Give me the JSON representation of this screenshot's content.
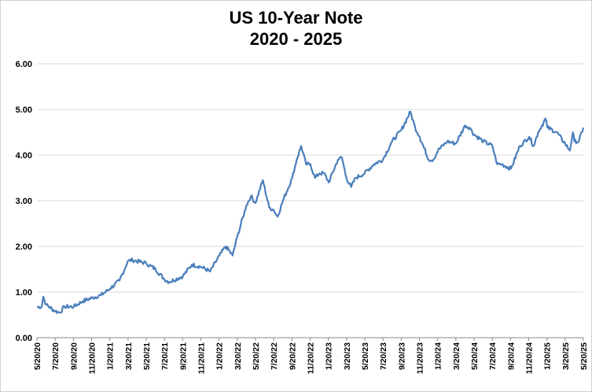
{
  "chart_data": {
    "type": "line",
    "title": "US 10-Year Note",
    "subtitle": "2020 - 2025",
    "xlabel": "",
    "ylabel": "",
    "ylim": [
      0,
      6
    ],
    "y_ticks": [
      "6.00",
      "5.00",
      "4.00",
      "3.00",
      "2.00",
      "1.00",
      "0.00"
    ],
    "x_ticks": [
      "5/20/20",
      "7/20/20",
      "9/20/20",
      "11/20/20",
      "1/20/21",
      "3/20/21",
      "5/20/21",
      "7/20/21",
      "9/20/21",
      "11/20/21",
      "1/20/22",
      "3/20/22",
      "5/20/22",
      "7/20/22",
      "9/20/22",
      "11/20/22",
      "1/20/23",
      "3/20/23",
      "5/20/23",
      "7/20/23",
      "9/20/23",
      "11/20/23",
      "1/20/24",
      "3/20/24",
      "5/20/24",
      "7/20/24",
      "9/20/24",
      "11/20/24",
      "1/20/25",
      "3/20/25",
      "5/20/25"
    ],
    "grid": true,
    "legend": "none",
    "series": [
      {
        "color": "#4a7ebb",
        "x": [
          "2020-05-20",
          "2020-06-05",
          "2020-06-10",
          "2020-06-20",
          "2020-07-20",
          "2020-08-05",
          "2020-08-20",
          "2020-09-20",
          "2020-10-20",
          "2020-11-20",
          "2020-12-20",
          "2021-01-20",
          "2021-02-20",
          "2021-03-20",
          "2021-04-05",
          "2021-05-20",
          "2021-06-20",
          "2021-07-20",
          "2021-08-05",
          "2021-09-20",
          "2021-10-20",
          "2021-11-20",
          "2021-12-20",
          "2022-01-20",
          "2022-02-10",
          "2022-03-05",
          "2022-03-20",
          "2022-04-20",
          "2022-05-05",
          "2022-05-20",
          "2022-06-14",
          "2022-07-05",
          "2022-07-20",
          "2022-08-02",
          "2022-08-20",
          "2022-09-20",
          "2022-10-05",
          "2022-10-20",
          "2022-11-05",
          "2022-11-20",
          "2022-12-05",
          "2022-12-20",
          "2023-01-05",
          "2023-01-20",
          "2023-02-20",
          "2023-03-05",
          "2023-03-20",
          "2023-04-05",
          "2023-04-20",
          "2023-05-20",
          "2023-06-20",
          "2023-07-20",
          "2023-08-20",
          "2023-09-20",
          "2023-10-20",
          "2023-11-05",
          "2023-11-20",
          "2023-12-20",
          "2024-01-05",
          "2024-01-20",
          "2024-02-20",
          "2024-03-20",
          "2024-04-20",
          "2024-05-05",
          "2024-05-20",
          "2024-06-20",
          "2024-07-20",
          "2024-08-05",
          "2024-08-20",
          "2024-09-20",
          "2024-10-20",
          "2024-11-20",
          "2024-12-05",
          "2024-12-20",
          "2025-01-14",
          "2025-01-20",
          "2025-02-20",
          "2025-03-20",
          "2025-04-05",
          "2025-04-15",
          "2025-04-20",
          "2025-05-05",
          "2025-05-20"
        ],
        "values": [
          0.67,
          0.68,
          0.9,
          0.72,
          0.58,
          0.55,
          0.68,
          0.68,
          0.8,
          0.87,
          0.93,
          1.08,
          1.25,
          1.68,
          1.7,
          1.63,
          1.5,
          1.28,
          1.22,
          1.35,
          1.6,
          1.55,
          1.45,
          1.8,
          2.0,
          1.8,
          2.2,
          2.9,
          3.1,
          2.95,
          3.45,
          2.85,
          2.8,
          2.65,
          3.0,
          3.5,
          3.9,
          4.2,
          3.8,
          3.8,
          3.5,
          3.6,
          3.6,
          3.4,
          3.9,
          3.95,
          3.5,
          3.3,
          3.5,
          3.6,
          3.8,
          3.9,
          4.3,
          4.55,
          4.95,
          4.6,
          4.4,
          3.9,
          3.9,
          4.1,
          4.3,
          4.25,
          4.65,
          4.6,
          4.45,
          4.3,
          4.2,
          3.8,
          3.8,
          3.7,
          4.2,
          4.4,
          4.2,
          4.5,
          4.8,
          4.6,
          4.5,
          4.25,
          4.1,
          4.5,
          4.3,
          4.3,
          4.6
        ]
      }
    ]
  }
}
